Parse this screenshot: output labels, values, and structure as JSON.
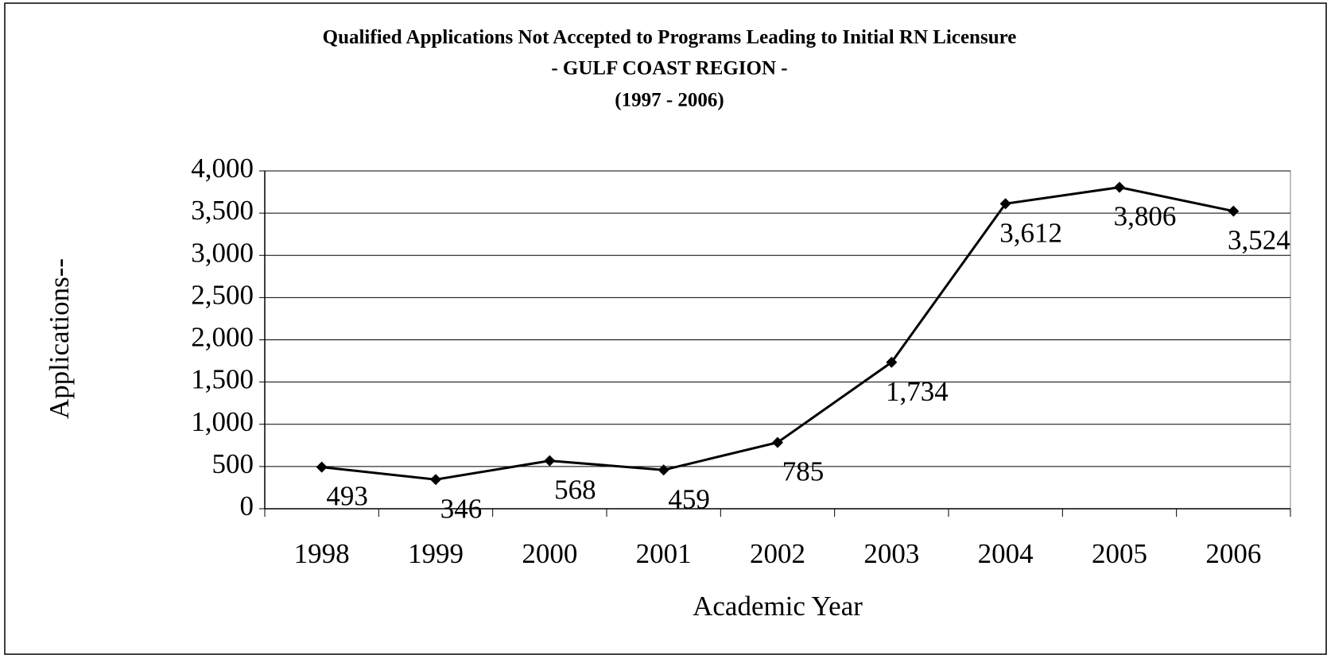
{
  "chart_data": {
    "type": "line",
    "title": [
      "Qualified Applications Not Accepted to Programs Leading to Initial RN Licensure",
      "- GULF COAST REGION -",
      "(1997 - 2006)"
    ],
    "x_label": "Academic Year",
    "y_label": "Applications--",
    "categories": [
      "1998",
      "1999",
      "2000",
      "2001",
      "2002",
      "2003",
      "2004",
      "2005",
      "2006"
    ],
    "series": [
      {
        "color": "#000000",
        "values": [
          493,
          346,
          568,
          459,
          785,
          1734,
          3612,
          3806,
          3524
        ],
        "value_labels": [
          "493",
          "346",
          "568",
          "459",
          "785",
          "1,734",
          "3,612",
          "3,806",
          "3,524"
        ]
      }
    ],
    "ylim": [
      0,
      4000
    ],
    "yticks": [
      0,
      500,
      {
        "value": 1000,
        "label": "1,000"
      },
      {
        "value": 1500,
        "label": "1,500"
      },
      {
        "value": 2000,
        "label": "2,000"
      },
      {
        "value": 2500,
        "label": "2,500"
      },
      {
        "value": 3000,
        "label": "3,000"
      },
      {
        "value": 3500,
        "label": "3,500"
      },
      {
        "value": 4000,
        "label": "4,000"
      }
    ],
    "grid": true
  }
}
